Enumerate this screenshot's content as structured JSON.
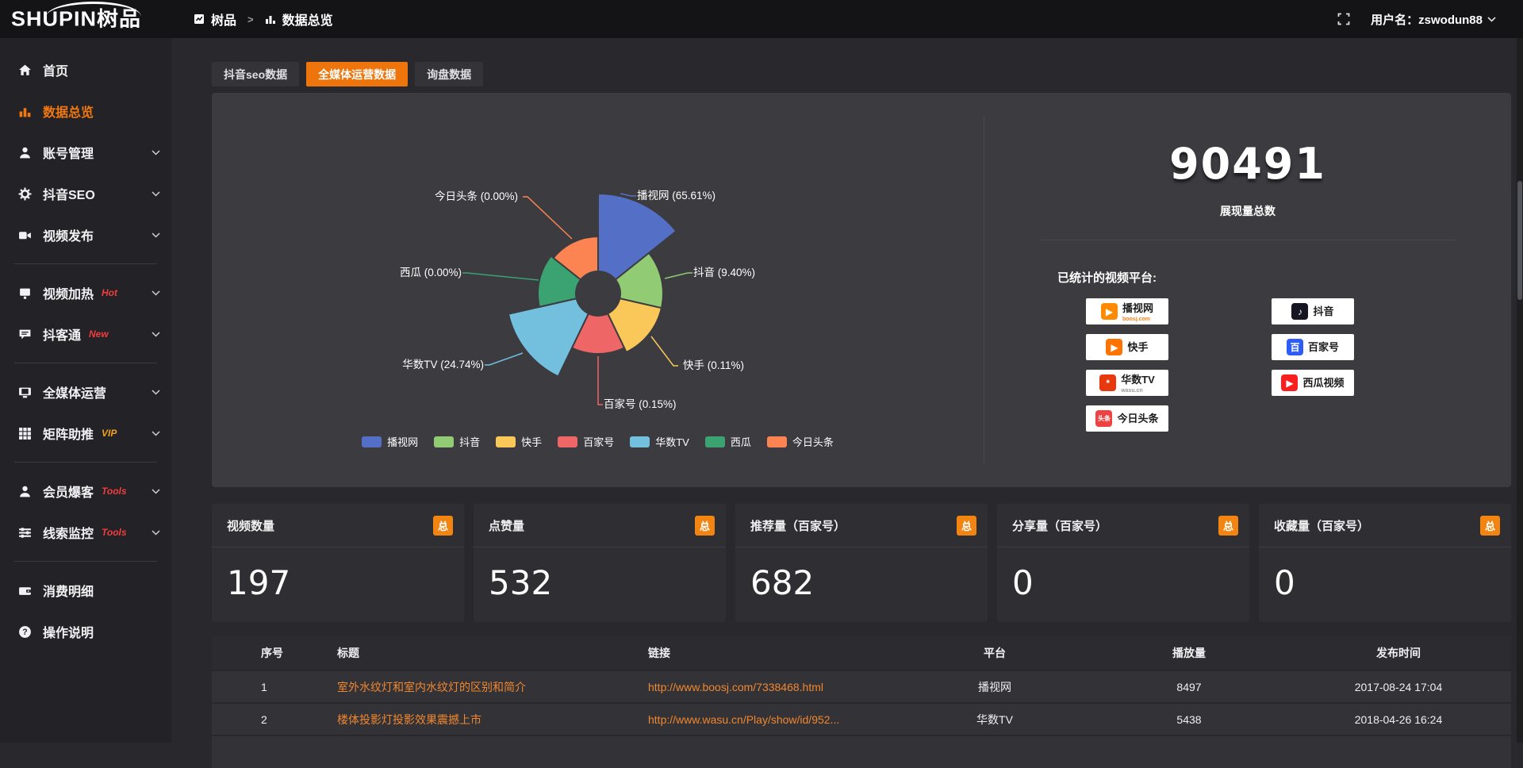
{
  "topbar": {
    "logo_text": "SHUPIN树品",
    "breadcrumb": {
      "root": "树品",
      "separator": ">",
      "current": "数据总览"
    },
    "username": "用户名：zswodun88"
  },
  "sidebar": {
    "groups": [
      {
        "items": [
          {
            "label": "首页",
            "icon": "home-icon"
          },
          {
            "label": "数据总览",
            "icon": "bar-chart-icon",
            "active": true
          },
          {
            "label": "账号管理",
            "icon": "user-icon",
            "chevron": true
          },
          {
            "label": "抖音SEO",
            "icon": "gear-icon",
            "chevron": true
          },
          {
            "label": "视频发布",
            "icon": "video-icon",
            "chevron": true
          }
        ]
      },
      {
        "items": [
          {
            "label": "视频加热",
            "tag": "Hot",
            "tag_color": "#f23c3c",
            "icon": "screen-icon",
            "chevron": true
          },
          {
            "label": "抖客通",
            "tag": "New",
            "tag_color": "#f23c3c",
            "icon": "chat-icon",
            "chevron": true
          }
        ]
      },
      {
        "items": [
          {
            "label": "全媒体运营",
            "icon": "monitor-icon",
            "chevron": true
          },
          {
            "label": "矩阵助推",
            "tag": "VIP",
            "tag_color": "#f0a020",
            "icon": "grid-icon",
            "chevron": true
          }
        ]
      },
      {
        "items": [
          {
            "label": "会员爆客",
            "tag": "Tools",
            "tag_color": "#f23c3c",
            "icon": "person-icon",
            "chevron": true
          },
          {
            "label": "线索监控",
            "tag": "Tools",
            "tag_color": "#f23c3c",
            "icon": "sliders-icon",
            "chevron": true
          }
        ]
      },
      {
        "items": [
          {
            "label": "消费明细",
            "icon": "wallet-icon"
          },
          {
            "label": "操作说明",
            "icon": "help-icon"
          }
        ]
      }
    ]
  },
  "tabs": [
    {
      "label": "抖音seo数据",
      "active": false
    },
    {
      "label": "全媒体运营数据",
      "active": true
    },
    {
      "label": "询盘数据",
      "active": false
    }
  ],
  "chart_data": {
    "type": "pie",
    "subtype": "nightingale-rose",
    "categories": [
      "播视网",
      "抖音",
      "快手",
      "百家号",
      "华数TV",
      "西瓜",
      "今日头条"
    ],
    "values": [
      65.61,
      9.4,
      0.11,
      0.15,
      24.74,
      0.0,
      0.0
    ],
    "unit": "%",
    "labels": [
      "播视网 (65.61%)",
      "抖音 (9.40%)",
      "快手 (0.11%)",
      "百家号 (0.15%)",
      "华数TV (24.74%)",
      "西瓜 (0.00%)",
      "今日头条 (0.00%)"
    ],
    "colors": [
      "#5470c6",
      "#91cc75",
      "#fac858",
      "#ee6666",
      "#73c0de",
      "#3ba272",
      "#fc8452"
    ],
    "legend_position": "bottom"
  },
  "summary": {
    "total_value": "90491",
    "total_label": "展现量总数",
    "platforms_label": "已统计的视频平台:",
    "platform_columns": [
      [
        {
          "name": "播视网",
          "sub": "boosj.com",
          "sub_color": "#f58220",
          "icon": "boosj-icon",
          "icon_bg": "#ff8a00",
          "glyph": "▶"
        },
        {
          "name": "快手",
          "icon": "kuaishou-icon",
          "icon_bg": "#ff7300",
          "glyph": "▶"
        },
        {
          "name": "华数TV",
          "sub": "wasu.cn",
          "sub_color": "#999999",
          "icon": "wasu-icon",
          "icon_bg": "#e8380d",
          "glyph": "*"
        },
        {
          "name": "今日头条",
          "icon": "toutiao-icon",
          "icon_bg": "#f04142",
          "glyph": "头条"
        }
      ],
      [
        {
          "name": "抖音",
          "icon": "douyin-icon",
          "icon_bg": "#161622",
          "glyph": "♪"
        },
        {
          "name": "百家号",
          "icon": "baijiahao-icon",
          "icon_bg": "#2d5cf6",
          "glyph": "百"
        },
        {
          "name": "西瓜视频",
          "icon": "xigua-icon",
          "icon_bg": "#fa1f1f",
          "glyph": "▶"
        }
      ]
    ]
  },
  "stat_cards": [
    {
      "label": "视频数量",
      "badge": "总",
      "value": "197"
    },
    {
      "label": "点赞量",
      "badge": "总",
      "value": "532"
    },
    {
      "label": "推荐量（百家号）",
      "badge": "总",
      "value": "682"
    },
    {
      "label": "分享量（百家号）",
      "badge": "总",
      "value": "0"
    },
    {
      "label": "收藏量（百家号）",
      "badge": "总",
      "value": "0"
    }
  ],
  "table": {
    "headers": [
      "序号",
      "标题",
      "链接",
      "平台",
      "播放量",
      "发布时间"
    ],
    "rows": [
      {
        "seq": "1",
        "title": "室外水纹灯和室内水纹灯的区别和简介",
        "link": "http://www.boosj.com/7338468.html",
        "platform": "播视网",
        "plays": "8497",
        "time": "2017-08-24 17:04"
      },
      {
        "seq": "2",
        "title": "楼体投影灯投影效果震撼上市",
        "link": "http://www.wasu.cn/Play/show/id/952...",
        "platform": "华数TV",
        "plays": "5438",
        "time": "2018-04-26 16:24"
      },
      {
        "seq": "",
        "title": "",
        "link": "",
        "platform": "",
        "plays": "",
        "time": ""
      }
    ]
  }
}
